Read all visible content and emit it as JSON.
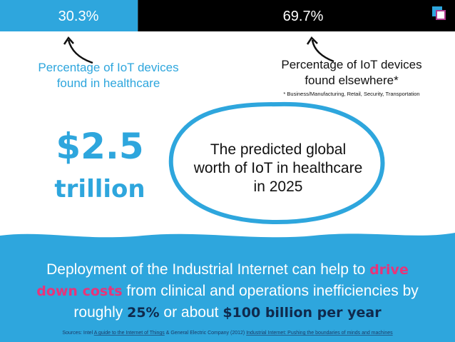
{
  "bar": {
    "values": [
      30.3,
      69.7
    ],
    "value_labels": [
      "30.3%",
      "69.7%"
    ],
    "colors": [
      "#2ea6dd",
      "#000000"
    ]
  },
  "annotations": [
    {
      "lines": [
        "Percentage of IoT devices",
        "found in healthcare"
      ]
    },
    {
      "lines": [
        "Percentage of IoT devices",
        "found elsewhere*"
      ],
      "footnote": "* Business/Manufacturing, Retail, Security, Transportation"
    }
  ],
  "highlight": {
    "amount": "$2.5",
    "unit": "trillion"
  },
  "bubble": {
    "lines": [
      "The predicted global",
      "worth of IoT in healthcare",
      "in 2025"
    ]
  },
  "statement": {
    "lines": [
      [
        {
          "text": "Deployment of the Industrial Internet can help to "
        },
        {
          "text": "drive",
          "style": "pink"
        }
      ],
      [
        {
          "text": "down costs",
          "style": "pink"
        },
        {
          "text": " from clinical and operations inefficiencies by"
        }
      ],
      [
        {
          "text": "roughly "
        },
        {
          "text": "25%",
          "style": "dark"
        },
        {
          "text": " or about "
        },
        {
          "text": "$100 billion per year",
          "style": "dark"
        }
      ]
    ]
  },
  "sources": [
    {
      "text": "Sources: Intel "
    },
    {
      "text": "A guide to the Internet of Things",
      "link": true
    },
    {
      "text": " & General Electric Company (2012) "
    },
    {
      "text": "Industrial Internet: Pushing the boundaries of minds and machines",
      "link": true
    }
  ]
}
